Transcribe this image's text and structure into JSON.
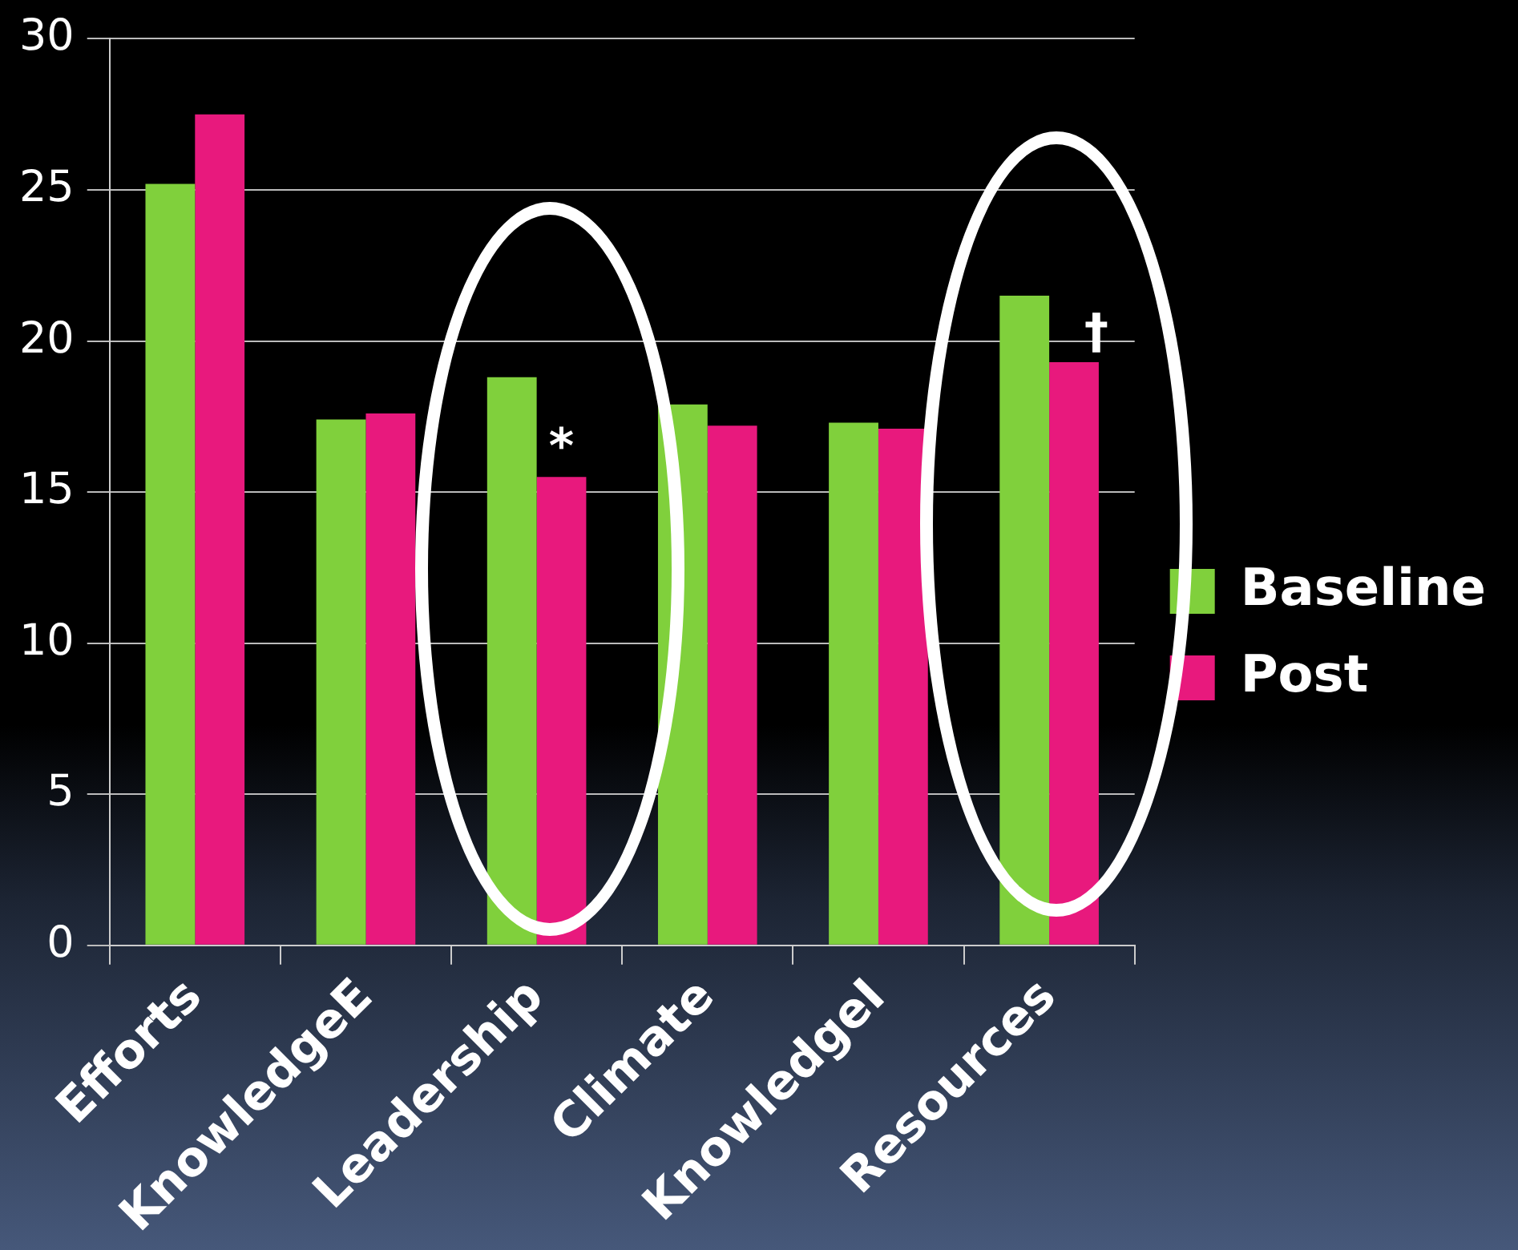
{
  "chart_data": {
    "type": "bar",
    "categories": [
      "Efforts",
      "KnowledgeE",
      "Leadership",
      "Climate",
      "KnowledgeI",
      "Resources"
    ],
    "series": [
      {
        "name": "Baseline",
        "color": "#80d03c",
        "values": [
          25.2,
          17.4,
          18.8,
          17.9,
          17.3,
          21.5
        ]
      },
      {
        "name": "Post",
        "color": "#e8197d",
        "values": [
          27.5,
          17.6,
          15.5,
          17.2,
          17.1,
          19.3
        ]
      }
    ],
    "ylim": [
      0,
      30
    ],
    "yticks": [
      0,
      5,
      10,
      15,
      20,
      25,
      30
    ],
    "grid": "y",
    "legend": "right",
    "annotations": [
      {
        "text": "*",
        "x": "Leadership",
        "y": 15.5
      },
      {
        "text": "†",
        "x": "Resources",
        "y": 19.3
      }
    ]
  }
}
